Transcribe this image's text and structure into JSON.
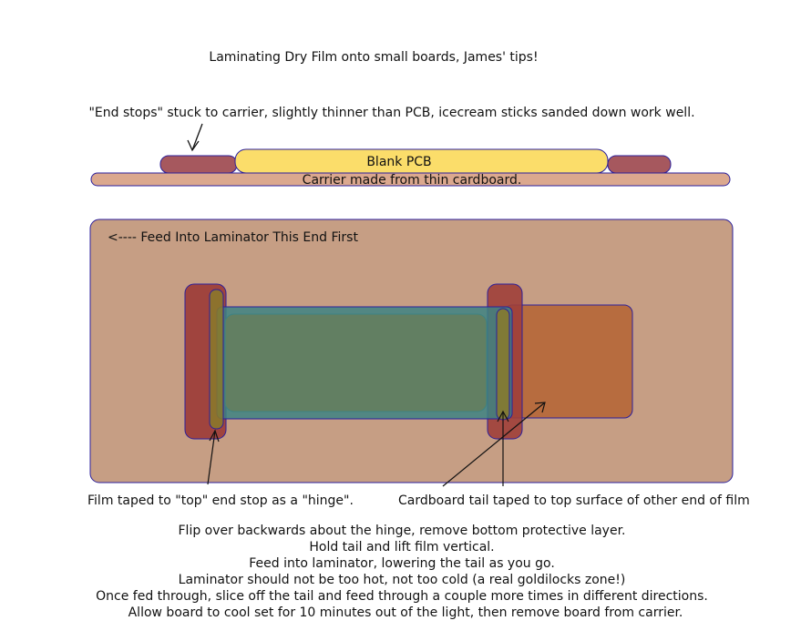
{
  "title": "Laminating Dry Film onto small boards, James' tips!",
  "end_stops_note": "\"End stops\" stuck to carrier, slightly thinner than PCB, icecream sticks sanded down work well.",
  "side_view": {
    "pcb_label": "Blank PCB",
    "carrier_label": "Carrier made from thin cardboard."
  },
  "top_view": {
    "feed_label": "<---- Feed Into Laminator This End First",
    "hinge_label": "Film taped to \"top\" end stop as a \"hinge\".",
    "tail_label": "Cardboard tail taped to top surface of other end of film"
  },
  "instructions": [
    "Flip over backwards about the hinge, remove bottom protective layer.",
    "Hold tail and lift film vertical.",
    "Feed into laminator, lowering the tail as you go.",
    "Laminator should not be too hot, not too cold (a real goldilocks zone!)",
    "Once fed through, slice off the tail and feed through a couple more times in different directions.",
    "Allow board to cool set for 10 minutes out of the light, then remove board from carrier."
  ],
  "colors": {
    "outline": "#2b1f9c",
    "pcb": "#fbdd6a",
    "end_stop": "#a6585e",
    "carrier": "#dba88e",
    "board": "#c69e84",
    "end_stop_top": "#9e3f3a",
    "hinge_tape": "#8a7a2a",
    "film": "#3d8383",
    "film_inner": "#627f62",
    "tail": "#b5683a"
  }
}
